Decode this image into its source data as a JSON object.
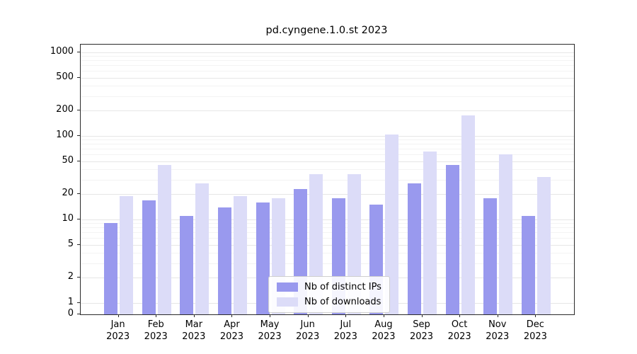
{
  "chart_data": {
    "type": "bar",
    "title": "pd.cyngene.1.0.st 2023",
    "scale": "symlog",
    "year": "2023",
    "categories": [
      "Jan",
      "Feb",
      "Mar",
      "Apr",
      "May",
      "Jun",
      "Jul",
      "Aug",
      "Sep",
      "Oct",
      "Nov",
      "Dec"
    ],
    "series": [
      {
        "name": "Nb of distinct IPs",
        "color": "#9999ee",
        "values": [
          9,
          17,
          11,
          14,
          16,
          23,
          18,
          15,
          27,
          45,
          18,
          11
        ]
      },
      {
        "name": "Nb of downloads",
        "color": "#dcdcf8",
        "values": [
          19,
          45,
          27,
          19,
          18,
          35,
          35,
          105,
          65,
          175,
          60,
          32
        ]
      }
    ],
    "yticks": [
      0,
      1,
      2,
      5,
      10,
      20,
      50,
      100,
      200,
      500,
      1000
    ],
    "yticks_minor": [
      3,
      4,
      6,
      7,
      8,
      9,
      30,
      40,
      60,
      70,
      80,
      90,
      300,
      400,
      600,
      700,
      800,
      900
    ],
    "ylim": [
      0,
      1240
    ],
    "xlabel": "",
    "ylabel": "",
    "grid": true,
    "legend_position": "bottom-center"
  }
}
